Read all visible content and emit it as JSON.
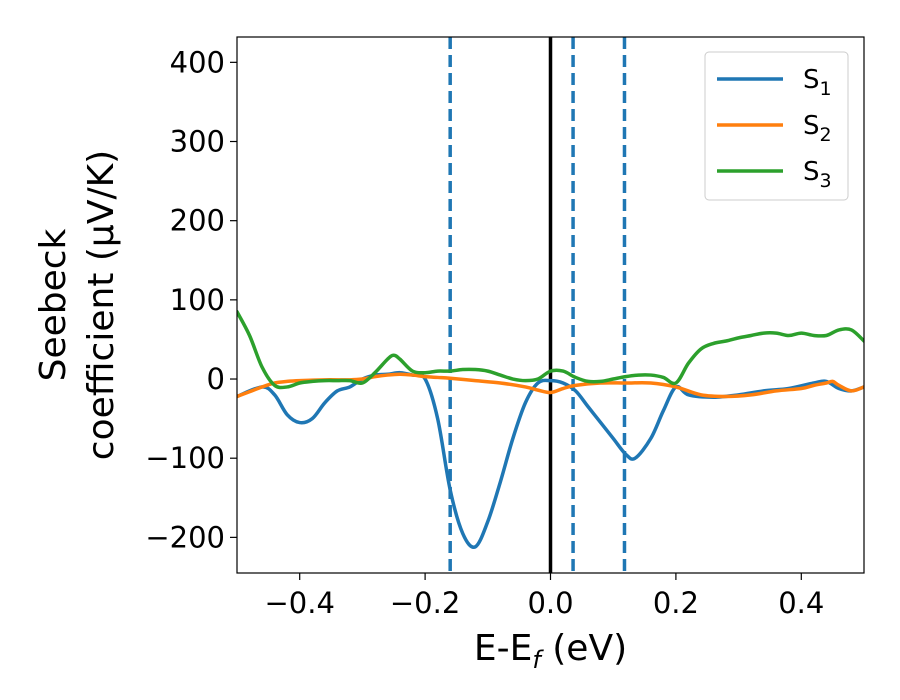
{
  "chart_data": {
    "type": "line",
    "xlabel": {
      "main": "E-E",
      "sub": "f",
      "unit": " (eV)"
    },
    "ylabel": {
      "line1": "Seebeck",
      "line2": "coefficient  (μV/K)"
    },
    "xlim": [
      -0.5,
      0.5
    ],
    "ylim": [
      -245,
      432
    ],
    "xticks": [
      -0.4,
      -0.2,
      0.0,
      0.2,
      0.4
    ],
    "xtick_labels": [
      "−0.4",
      "−0.2",
      "0.0",
      "0.2",
      "0.4"
    ],
    "yticks": [
      -200,
      -100,
      0,
      100,
      200,
      300,
      400
    ],
    "ytick_labels": [
      "−200",
      "−100",
      "0",
      "100",
      "200",
      "300",
      "400"
    ],
    "grid": false,
    "legend_position": "top-right",
    "vertical_lines": [
      {
        "x": 0.0,
        "style": "solid",
        "color": "#000000"
      },
      {
        "x": -0.16,
        "style": "dashed",
        "color": "#1f77b4"
      },
      {
        "x": 0.036,
        "style": "dashed",
        "color": "#1f77b4"
      },
      {
        "x": 0.118,
        "style": "dashed",
        "color": "#1f77b4"
      }
    ],
    "series": [
      {
        "name": "S",
        "sub": "1",
        "color": "#1f77b4",
        "x": [
          -0.5,
          -0.46,
          -0.44,
          -0.42,
          -0.4,
          -0.38,
          -0.36,
          -0.34,
          -0.32,
          -0.3,
          -0.28,
          -0.26,
          -0.24,
          -0.22,
          -0.2,
          -0.18,
          -0.16,
          -0.14,
          -0.12,
          -0.1,
          -0.08,
          -0.06,
          -0.04,
          -0.02,
          0.0,
          0.02,
          0.04,
          0.06,
          0.08,
          0.1,
          0.12,
          0.135,
          0.16,
          0.18,
          0.2,
          0.22,
          0.26,
          0.3,
          0.34,
          0.38,
          0.42,
          0.44,
          0.46,
          0.48,
          0.5
        ],
        "y": [
          -22,
          -10,
          -20,
          -45,
          -55,
          -50,
          -30,
          -15,
          -10,
          0,
          5,
          6,
          8,
          5,
          0,
          -50,
          -140,
          -195,
          -212,
          -180,
          -130,
          -75,
          -30,
          -5,
          -2,
          -5,
          -15,
          -35,
          -55,
          -75,
          -95,
          -100,
          -75,
          -40,
          -10,
          -20,
          -23,
          -20,
          -15,
          -12,
          -5,
          -3,
          -12,
          -15,
          -10
        ]
      },
      {
        "name": "S",
        "sub": "2",
        "color": "#ff7f0e",
        "x": [
          -0.5,
          -0.46,
          -0.44,
          -0.42,
          -0.4,
          -0.36,
          -0.32,
          -0.3,
          -0.28,
          -0.26,
          -0.24,
          -0.22,
          -0.2,
          -0.18,
          -0.16,
          -0.12,
          -0.08,
          -0.04,
          -0.02,
          0.0,
          0.02,
          0.04,
          0.08,
          0.12,
          0.16,
          0.2,
          0.24,
          0.28,
          0.32,
          0.36,
          0.4,
          0.42,
          0.44,
          0.45,
          0.46,
          0.48,
          0.5
        ],
        "y": [
          -22,
          -10,
          -5,
          -3,
          -2,
          -1,
          -1,
          0,
          3,
          5,
          6,
          5,
          3,
          2,
          1,
          -2,
          -5,
          -10,
          -14,
          -17,
          -12,
          -8,
          -5,
          -5,
          -5,
          -10,
          -20,
          -22,
          -20,
          -15,
          -12,
          -8,
          -5,
          -3,
          -8,
          -15,
          -10
        ]
      },
      {
        "name": "S",
        "sub": "3",
        "color": "#2ca02c",
        "x": [
          -0.5,
          -0.48,
          -0.46,
          -0.44,
          -0.42,
          -0.4,
          -0.38,
          -0.36,
          -0.34,
          -0.32,
          -0.3,
          -0.28,
          -0.26,
          -0.25,
          -0.24,
          -0.22,
          -0.2,
          -0.18,
          -0.16,
          -0.14,
          -0.12,
          -0.1,
          -0.08,
          -0.06,
          -0.04,
          -0.02,
          0.0,
          0.02,
          0.04,
          0.06,
          0.08,
          0.1,
          0.12,
          0.14,
          0.16,
          0.18,
          0.2,
          0.22,
          0.24,
          0.26,
          0.28,
          0.3,
          0.32,
          0.34,
          0.36,
          0.38,
          0.4,
          0.42,
          0.44,
          0.46,
          0.48,
          0.5
        ],
        "y": [
          85,
          55,
          15,
          -8,
          -10,
          -5,
          -3,
          -2,
          -2,
          -2,
          -5,
          8,
          25,
          30,
          25,
          10,
          8,
          10,
          10,
          12,
          12,
          10,
          5,
          0,
          -2,
          0,
          10,
          10,
          2,
          -3,
          -3,
          0,
          3,
          5,
          5,
          2,
          -5,
          20,
          38,
          45,
          48,
          52,
          55,
          58,
          58,
          55,
          58,
          55,
          55,
          62,
          62,
          48
        ]
      }
    ]
  }
}
